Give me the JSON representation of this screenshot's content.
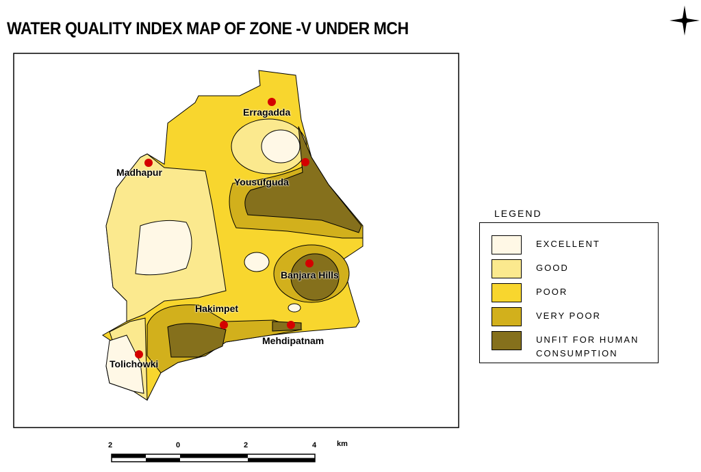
{
  "title": "WATER QUALITY INDEX MAP OF ZONE -V UNDER MCH",
  "places": [
    {
      "label": "Erragadda"
    },
    {
      "label": "Madhapur"
    },
    {
      "label": "Yousufguda"
    },
    {
      "label": "Banjara Hills"
    },
    {
      "label": "Hakimpet"
    },
    {
      "label": "Mehdipatnam"
    },
    {
      "label": "Tolichowki"
    }
  ],
  "legend": {
    "title": "LEGEND",
    "items": [
      {
        "label": "EXCELLENT",
        "color": "#fff8e6"
      },
      {
        "label": "GOOD",
        "color": "#fbe98e"
      },
      {
        "label": "POOR",
        "color": "#f8d62e"
      },
      {
        "label": "VERY POOR",
        "color": "#d2b01c"
      },
      {
        "label": "UNFIT FOR HUMAN CONSUMPTION",
        "color": "#85701c"
      }
    ]
  },
  "scale_bar": {
    "ticks": [
      "2",
      "0",
      "2",
      "4"
    ],
    "unit": "km"
  }
}
